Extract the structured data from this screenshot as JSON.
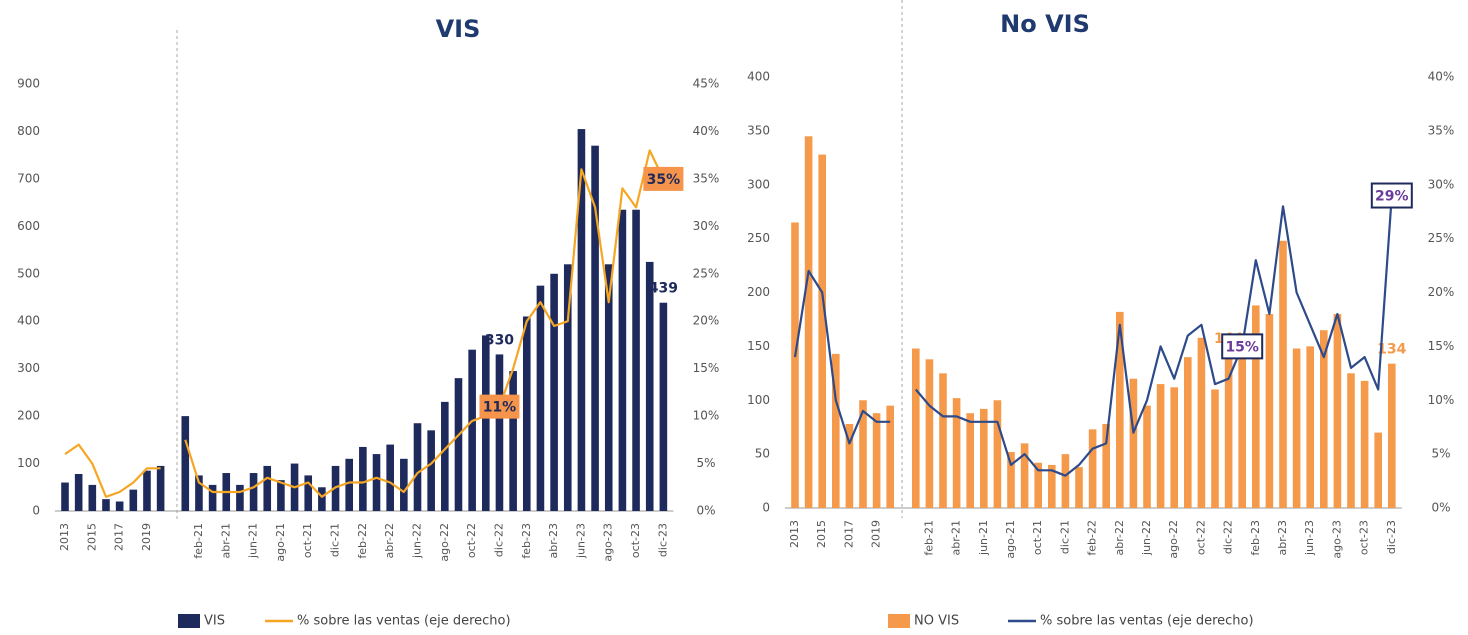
{
  "chart_data": [
    {
      "type": "bar",
      "title": "VIS",
      "categories": [
        "2013",
        null,
        "2015",
        null,
        "2017",
        null,
        "2019",
        null,
        null,
        "feb-21",
        null,
        "abr-21",
        null,
        "jun-21",
        null,
        "ago-21",
        null,
        "oct-21",
        null,
        "dic-21",
        null,
        "feb-22",
        null,
        "abr-22",
        null,
        "jun-22",
        null,
        "ago-22",
        null,
        "oct-22",
        null,
        "dic-22",
        null,
        "feb-23",
        null,
        "abr-23",
        null,
        "jun-23",
        null,
        "ago-23",
        null,
        "oct-23",
        null,
        "dic-23"
      ],
      "series": [
        {
          "name": "VIS",
          "type": "bar",
          "color": "#1f2a5c",
          "values": [
            60,
            78,
            55,
            25,
            20,
            45,
            85,
            95,
            200,
            75,
            55,
            80,
            55,
            80,
            95,
            65,
            100,
            75,
            50,
            95,
            110,
            135,
            120,
            140,
            110,
            185,
            170,
            230,
            280,
            340,
            370,
            330,
            295,
            410,
            475,
            500,
            520,
            805,
            770,
            520,
            635,
            635,
            525,
            439
          ],
          "value_labels": [
            null,
            null,
            null,
            null,
            null,
            null,
            null,
            null,
            null,
            null,
            null,
            null,
            null,
            null,
            null,
            null,
            null,
            null,
            null,
            null,
            null,
            null,
            null,
            null,
            null,
            null,
            null,
            null,
            null,
            null,
            null,
            "330",
            null,
            null,
            null,
            null,
            null,
            null,
            null,
            null,
            null,
            null,
            null,
            "439"
          ]
        },
        {
          "name": "% sobre las ventas (eje derecho)",
          "type": "line",
          "axis": "y2",
          "color": "#f5a623",
          "values": [
            6,
            7,
            5,
            1.5,
            2,
            3,
            4.5,
            4.5,
            7.5,
            3,
            2,
            2,
            2,
            2.5,
            3.5,
            3,
            2.5,
            3,
            1.5,
            2.5,
            3,
            3,
            3.5,
            3,
            2,
            4,
            5,
            6.5,
            8,
            9.5,
            10,
            11,
            15,
            20,
            22,
            19.5,
            20,
            36,
            32,
            22,
            34,
            32,
            38,
            35
          ],
          "value_labels": [
            null,
            null,
            null,
            null,
            null,
            null,
            null,
            null,
            null,
            null,
            null,
            null,
            null,
            null,
            null,
            null,
            null,
            null,
            null,
            null,
            null,
            null,
            null,
            null,
            null,
            null,
            null,
            null,
            null,
            null,
            null,
            "11%",
            null,
            null,
            null,
            null,
            null,
            null,
            null,
            null,
            null,
            null,
            null,
            "35%"
          ]
        }
      ],
      "ylim": [
        0,
        900
      ],
      "yticks": [
        0,
        100,
        200,
        300,
        400,
        500,
        600,
        700,
        800,
        900
      ],
      "y2lim": [
        0,
        45
      ],
      "y2ticks": [
        {
          "value": 0,
          "label": "0%"
        },
        {
          "value": 5,
          "label": "5%"
        },
        {
          "value": 10,
          "label": "10%"
        },
        {
          "value": 15,
          "label": "15%"
        },
        {
          "value": 20,
          "label": "20%"
        },
        {
          "value": 25,
          "label": "25%"
        },
        {
          "value": 30,
          "label": "30%"
        },
        {
          "value": 35,
          "label": "35%"
        },
        {
          "value": 40,
          "label": "40%"
        },
        {
          "value": 45,
          "label": "45%"
        }
      ],
      "grid": false,
      "legend": "bottom"
    },
    {
      "type": "bar",
      "title": "No VIS",
      "categories": [
        "2013",
        null,
        "2015",
        null,
        "2017",
        null,
        "2019",
        null,
        null,
        "feb-21",
        null,
        "abr-21",
        null,
        "jun-21",
        null,
        "ago-21",
        null,
        "oct-21",
        null,
        "dic-21",
        null,
        "feb-22",
        null,
        "abr-22",
        null,
        "jun-22",
        null,
        "ago-22",
        null,
        "oct-22",
        null,
        "dic-22",
        null,
        "feb-23",
        null,
        "abr-23",
        null,
        "jun-23",
        null,
        "ago-23",
        null,
        "oct-23",
        null,
        "dic-23"
      ],
      "series": [
        {
          "name": "NO VIS",
          "type": "bar",
          "color": "#f59a4a",
          "values": [
            265,
            345,
            328,
            143,
            78,
            100,
            88,
            95,
            148,
            138,
            125,
            102,
            88,
            92,
            100,
            52,
            60,
            42,
            40,
            50,
            38,
            73,
            78,
            182,
            120,
            95,
            115,
            112,
            140,
            158,
            110,
            144,
            140,
            188,
            180,
            248,
            148,
            150,
            165,
            180,
            125,
            118,
            70,
            134
          ],
          "value_labels": [
            null,
            null,
            null,
            null,
            null,
            null,
            null,
            null,
            null,
            null,
            null,
            null,
            null,
            null,
            null,
            null,
            null,
            null,
            null,
            null,
            null,
            null,
            null,
            null,
            null,
            null,
            null,
            null,
            null,
            null,
            null,
            "144",
            null,
            null,
            null,
            null,
            null,
            null,
            null,
            null,
            null,
            null,
            null,
            "134"
          ]
        },
        {
          "name": "% sobre las ventas (eje derecho)",
          "type": "line",
          "axis": "y2",
          "color": "#2d4a8a",
          "values": [
            14,
            22,
            20,
            10,
            6,
            9,
            8,
            8,
            11,
            9.5,
            8.5,
            8.5,
            8,
            8,
            8,
            4,
            5,
            3.5,
            3.5,
            3,
            4,
            5.5,
            6,
            17,
            7,
            10,
            15,
            12,
            16,
            17,
            11.5,
            12,
            15,
            23,
            18,
            28,
            20,
            17,
            14,
            18,
            13,
            14,
            11,
            29
          ],
          "value_labels": [
            null,
            null,
            null,
            null,
            null,
            null,
            null,
            null,
            null,
            null,
            null,
            null,
            null,
            null,
            null,
            null,
            null,
            null,
            null,
            null,
            null,
            null,
            null,
            null,
            null,
            null,
            null,
            null,
            null,
            null,
            null,
            null,
            "15%",
            null,
            null,
            null,
            null,
            null,
            null,
            null,
            null,
            null,
            null,
            "29%"
          ]
        }
      ],
      "ylim": [
        0,
        400
      ],
      "yticks": [
        0,
        50,
        100,
        150,
        200,
        250,
        300,
        350,
        400
      ],
      "y2lim": [
        0,
        40
      ],
      "y2ticks": [
        {
          "value": 0,
          "label": "0%"
        },
        {
          "value": 5,
          "label": "5%"
        },
        {
          "value": 10,
          "label": "10%"
        },
        {
          "value": 15,
          "label": "15%"
        },
        {
          "value": 20,
          "label": "20%"
        },
        {
          "value": 25,
          "label": "25%"
        },
        {
          "value": 30,
          "label": "30%"
        },
        {
          "value": 35,
          "label": "35%"
        },
        {
          "value": 40,
          "label": "40%"
        }
      ],
      "grid": false,
      "legend": "bottom"
    }
  ]
}
